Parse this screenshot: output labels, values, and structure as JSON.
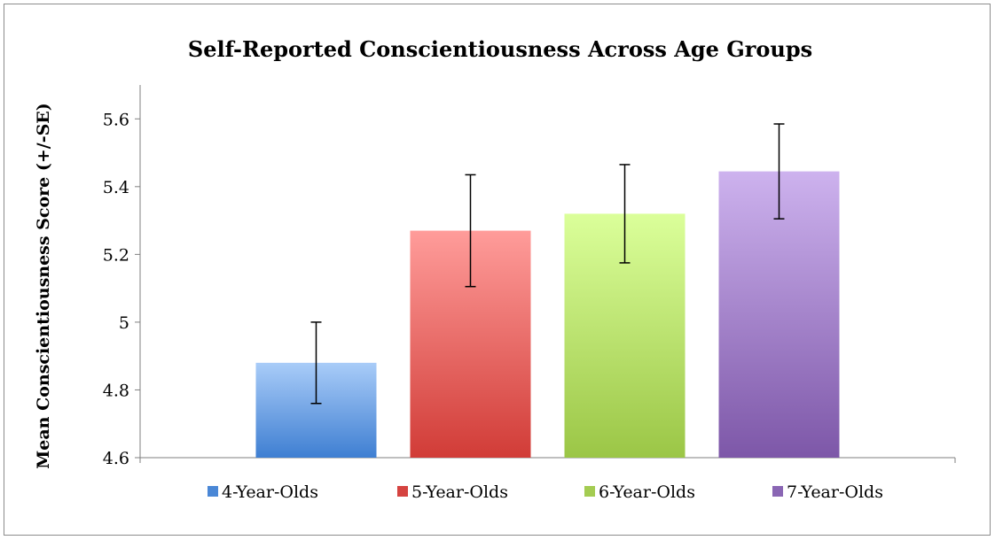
{
  "chart_data": {
    "type": "bar",
    "title": "Self-Reported Conscientiousness Across Age Groups",
    "ylabel": "Mean Conscientiousness Score (+/-SE)",
    "xlabel": "",
    "ylim": [
      4.6,
      5.7
    ],
    "yticks": [
      4.6,
      4.8,
      5,
      5.2,
      5.4,
      5.6
    ],
    "ytick_labels": [
      "4.6",
      "4.8",
      "5",
      "5.2",
      "5.4",
      "5.6"
    ],
    "grid": false,
    "legend_position": "bottom",
    "series": [
      {
        "name": "4-Year-Olds",
        "value": 4.88,
        "se": 0.12,
        "color_top": "#a9ccf8",
        "color_bottom": "#3f7fd2",
        "legend_color": "#4a87d6"
      },
      {
        "name": "5-Year-Olds",
        "value": 5.27,
        "se": 0.165,
        "color_top": "#ff9c9a",
        "color_bottom": "#d13c37",
        "legend_color": "#d54340"
      },
      {
        "name": "6-Year-Olds",
        "value": 5.32,
        "se": 0.145,
        "color_top": "#dbff9a",
        "color_bottom": "#9bc646",
        "legend_color": "#a4cc52"
      },
      {
        "name": "7-Year-Olds",
        "value": 5.445,
        "se": 0.14,
        "color_top": "#cdb2ee",
        "color_bottom": "#7d57a8",
        "legend_color": "#8a66b4"
      }
    ]
  }
}
